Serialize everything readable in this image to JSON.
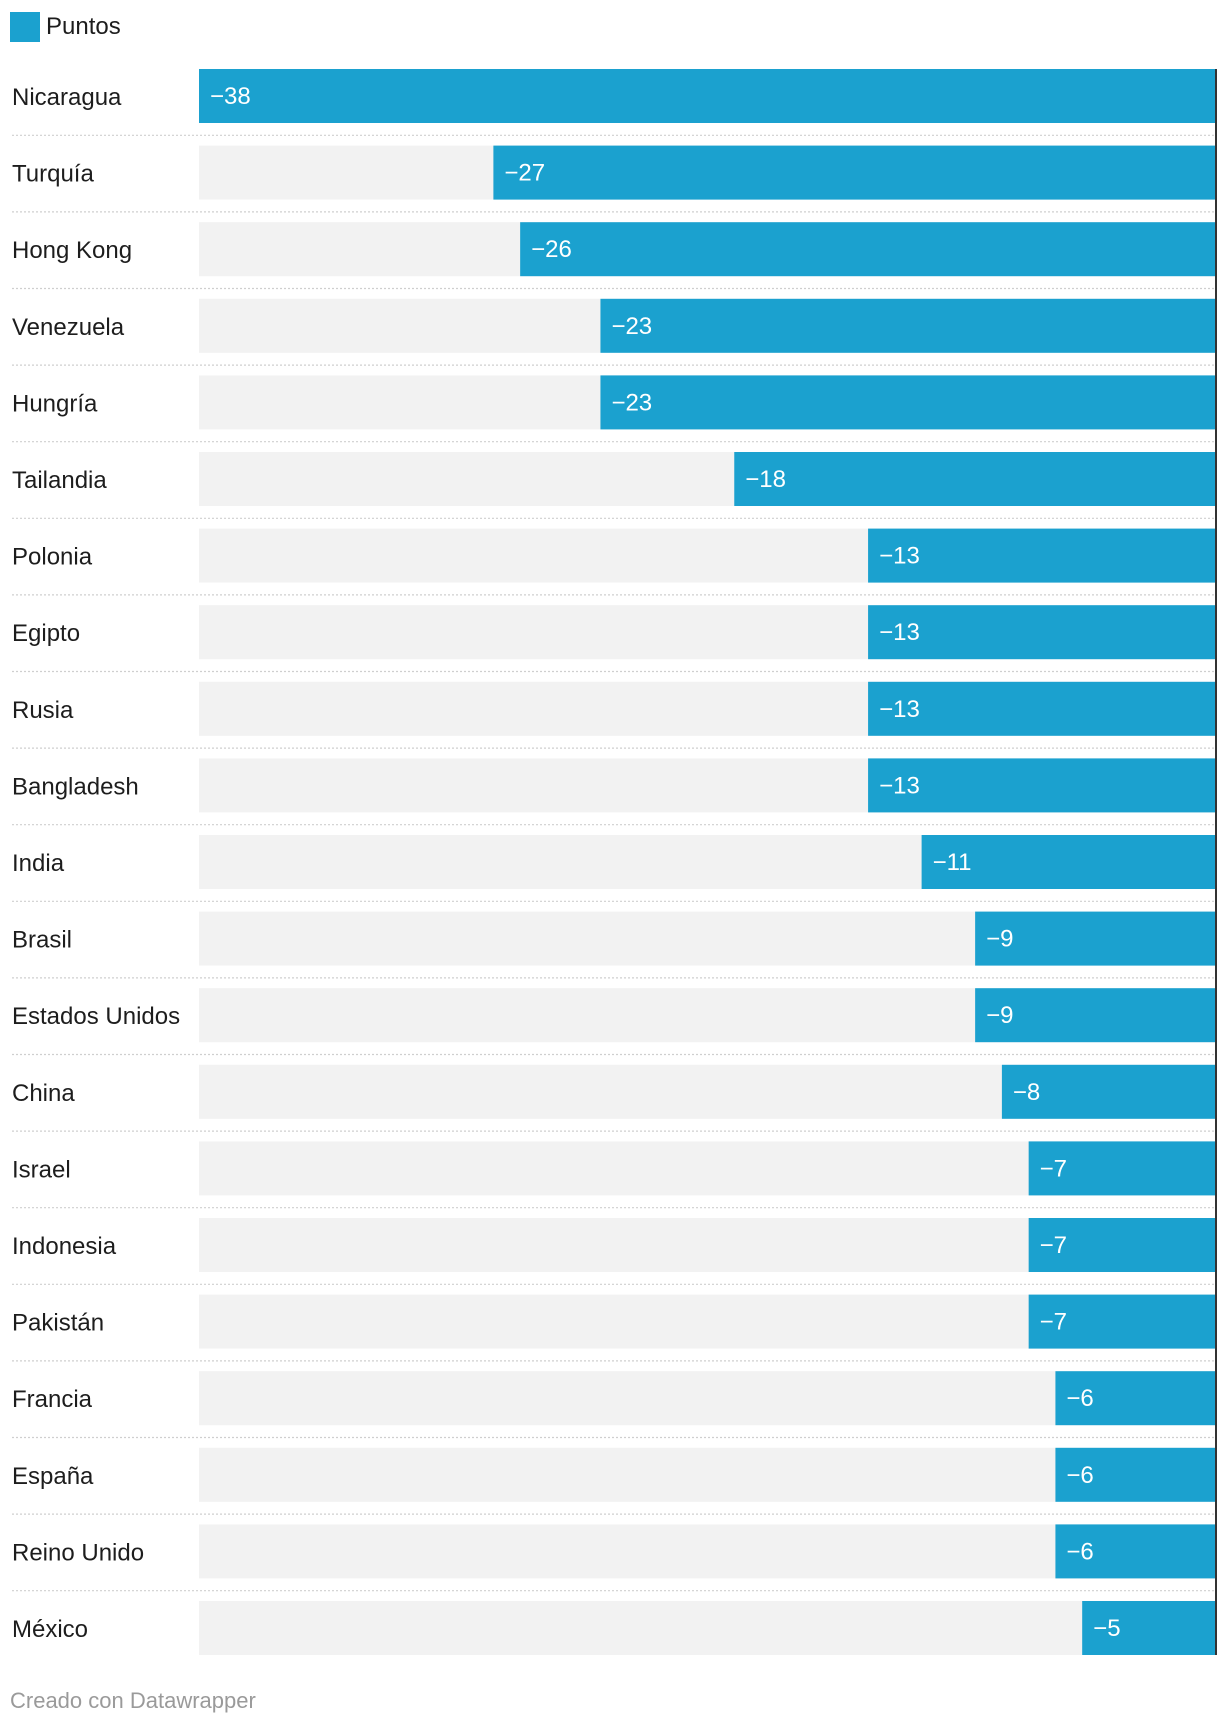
{
  "legend": {
    "label": "Puntos",
    "color": "#1ba1cf"
  },
  "footer": {
    "credit": "Creado con Datawrapper"
  },
  "colors": {
    "bar": "#1ba1cf",
    "track": "#f2f2f2",
    "separator": "#cfcfcf",
    "axis_line": "#333333"
  },
  "chart_data": {
    "type": "bar",
    "orientation": "horizontal",
    "title": "",
    "xlabel": "",
    "ylabel": "",
    "xlim": [
      -38,
      0
    ],
    "grid": false,
    "legend_position": "top-left",
    "value_labels": true,
    "categories": [
      "Nicaragua",
      "Turquía",
      "Hong Kong",
      "Venezuela",
      "Hungría",
      "Tailandia",
      "Polonia",
      "Egipto",
      "Rusia",
      "Bangladesh",
      "India",
      "Brasil",
      "Estados Unidos",
      "China",
      "Israel",
      "Indonesia",
      "Pakistán",
      "Francia",
      "España",
      "Reino Unido",
      "México"
    ],
    "series": [
      {
        "name": "Puntos",
        "values": [
          -38,
          -27,
          -26,
          -23,
          -23,
          -18,
          -13,
          -13,
          -13,
          -13,
          -11,
          -9,
          -9,
          -8,
          -7,
          -7,
          -7,
          -6,
          -6,
          -6,
          -5
        ],
        "labels": [
          "−38",
          "−27",
          "−26",
          "−23",
          "−23",
          "−18",
          "−13",
          "−13",
          "−13",
          "−13",
          "−11",
          "−9",
          "−9",
          "−8",
          "−7",
          "−7",
          "−7",
          "−6",
          "−6",
          "−6",
          "−5"
        ]
      }
    ]
  }
}
